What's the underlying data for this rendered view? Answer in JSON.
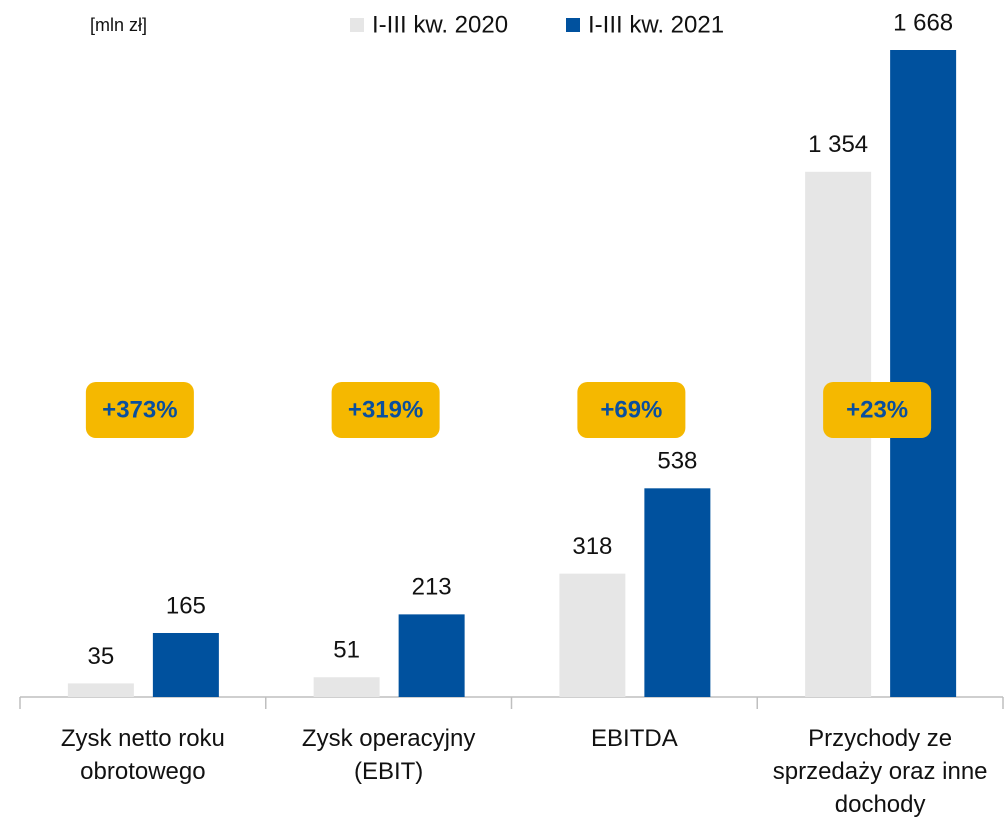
{
  "chart_data": {
    "type": "bar",
    "unit_label": "[mln zł]",
    "categories": [
      "Zysk netto roku obrotowego",
      "Zysk operacyjny (EBIT)",
      "EBITDA",
      "Przychody ze sprzedaży oraz inne dochody"
    ],
    "series": [
      {
        "name": "I-III kw. 2020",
        "color": "#e6e6e6",
        "values": [
          35,
          51,
          318,
          1354
        ],
        "value_labels": [
          "35",
          "51",
          "318",
          "1 354"
        ]
      },
      {
        "name": "I-III kw. 2021",
        "color": "#00519e",
        "values": [
          165,
          213,
          538,
          1668
        ],
        "value_labels": [
          "165",
          "213",
          "538",
          "1 668"
        ]
      }
    ],
    "annotations": [
      "+373%",
      "+319%",
      "+69%",
      "+23%"
    ],
    "annotation_color": "#f5b800"
  }
}
